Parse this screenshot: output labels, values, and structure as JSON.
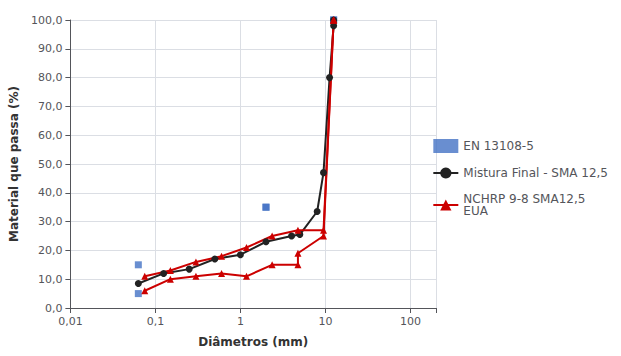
{
  "chart_data": {
    "type": "line",
    "log": "x",
    "grid": true,
    "legend": "right",
    "xlabel": "Diâmetros (mm)",
    "ylabel": "Material que passa (%)",
    "xlim": [
      0.01,
      200
    ],
    "xticks": [
      {
        "value": 0.01,
        "label": "0,01"
      },
      {
        "value": 0.1,
        "label": "0,1"
      },
      1,
      10,
      100
    ],
    "ylim": [
      0,
      100
    ],
    "yticks": [
      {
        "value": 0.0,
        "label": "0,0"
      },
      {
        "value": 10.0,
        "label": "10,0"
      },
      {
        "value": 20.0,
        "label": "20,0"
      },
      {
        "value": 30.0,
        "label": "30,0"
      },
      {
        "value": 40.0,
        "label": "40,0"
      },
      {
        "value": 50.0,
        "label": "50,0"
      },
      {
        "value": 60.0,
        "label": "60,0"
      },
      {
        "value": 70.0,
        "label": "70,0"
      },
      {
        "value": 80.0,
        "label": "80,0"
      },
      {
        "value": 90.0,
        "label": "90,0"
      },
      {
        "value": 100.0,
        "label": "100,0"
      }
    ],
    "series": [
      {
        "name": "EN 13108-5",
        "type": "scatter",
        "color": "#4472C4",
        "marker": "square",
        "x": [
          0.063,
          0.063,
          2.0,
          2.0,
          12.5,
          12.5
        ],
        "values": [
          5.0,
          15.0,
          35.0,
          35.0,
          100.0,
          100.0
        ]
      },
      {
        "name": "Mistura Final - SMA 12,5",
        "type": "line",
        "color": "#222222",
        "marker": "circle",
        "line_style": "solid",
        "x": [
          0.063,
          0.125,
          0.25,
          0.5,
          1.0,
          2.0,
          4.0,
          5.0,
          8.0,
          9.5,
          11.2,
          12.5,
          12.5
        ],
        "values": [
          8.5,
          12.0,
          13.5,
          17.0,
          18.5,
          23.0,
          25.0,
          25.5,
          33.5,
          47.0,
          80.0,
          98.0,
          100.0
        ]
      },
      {
        "name": "NCHRP 9-8 SMA12,5\nEUA",
        "type": "line",
        "color": "#CC0000",
        "marker": "triangle",
        "line_style": "solid",
        "x": [
          0.075,
          0.15,
          0.3,
          0.6,
          1.18,
          2.36,
          4.75,
          4.75,
          9.5,
          12.5,
          12.5
        ],
        "values": [
          6.0,
          10.0,
          11.0,
          12.0,
          11.0,
          15.0,
          15.0,
          19.0,
          25.0,
          100.0,
          100.0
        ]
      },
      {
        "name": "NCHRP 9-8 SMA12,5\nEUA",
        "type": "line",
        "color": "#CC0000",
        "marker": "triangle",
        "line_style": "solid",
        "x": [
          0.075,
          0.15,
          0.3,
          0.6,
          1.18,
          2.36,
          4.75,
          9.5,
          12.5,
          12.5
        ],
        "values": [
          11.0,
          13.0,
          16.0,
          18.0,
          21.0,
          25.0,
          27.0,
          27.0,
          100.0,
          100.0
        ]
      }
    ]
  }
}
